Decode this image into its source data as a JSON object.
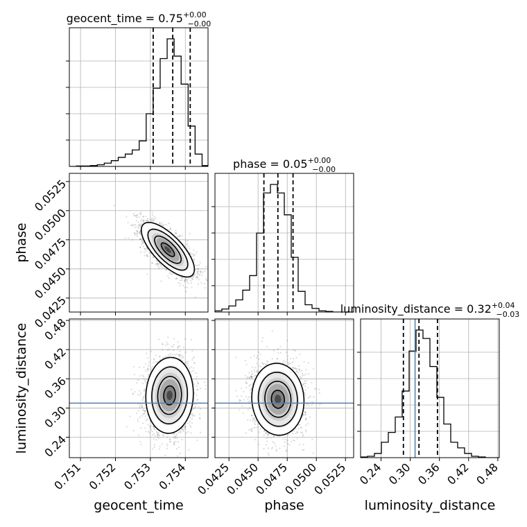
{
  "chart_data": {
    "type": "corner",
    "parameters": [
      "geocent_time",
      "phase",
      "luminosity_distance"
    ],
    "panel_titles": [
      {
        "prefix": "geocent_time = 0.75",
        "upper": "+0.00",
        "lower": "−0.00"
      },
      {
        "prefix": "phase = 0.05",
        "upper": "+0.00",
        "lower": "−0.00"
      },
      {
        "prefix": "luminosity_distance = 0.32",
        "upper": "+0.04",
        "lower": "−0.03"
      }
    ],
    "ranges": {
      "geocent_time": [
        0.75068,
        0.75465
      ],
      "phase": [
        0.0413,
        0.0532
      ],
      "luminosity_distance": [
        0.198,
        0.483
      ]
    },
    "ticks": {
      "geocent_time": {
        "values": [
          0.751,
          0.752,
          0.753,
          0.754
        ],
        "labels": [
          "0.751",
          "0.752",
          "0.753",
          "0.754"
        ]
      },
      "phase": {
        "values": [
          0.0425,
          0.045,
          0.0475,
          0.05,
          0.0525
        ],
        "labels": [
          "0.0425",
          "0.0450",
          "0.0475",
          "0.0500",
          "0.0525"
        ]
      },
      "luminosity_distance": {
        "values": [
          0.24,
          0.3,
          0.36,
          0.42,
          0.48
        ],
        "labels": [
          "0.24",
          "0.30",
          "0.36",
          "0.42",
          "0.48"
        ]
      }
    },
    "quantiles": {
      "geocent_time": [
        0.75308,
        0.75364,
        0.75414
      ],
      "phase": [
        0.0455,
        0.0467,
        0.048
      ],
      "luminosity_distance": [
        0.286,
        0.318,
        0.356
      ]
    },
    "truth": {
      "luminosity_distance": 0.31
    },
    "histograms": {
      "geocent_time": {
        "bin_width": 0.0002,
        "start": 0.75068,
        "counts": [
          0,
          1,
          1,
          2,
          4,
          8,
          14,
          22,
          30,
          40,
          62,
          128,
          190,
          262,
          310,
          268,
          200,
          98,
          30,
          2
        ]
      },
      "phase": {
        "bin_width": 0.000595,
        "start": 0.0413,
        "counts": [
          2,
          5,
          10,
          20,
          36,
          60,
          130,
          196,
          210,
          196,
          160,
          90,
          34,
          12,
          6,
          2,
          1,
          0,
          0,
          0
        ]
      },
      "luminosity_distance": {
        "bin_width": 0.01425,
        "start": 0.198,
        "counts": [
          1,
          2,
          6,
          22,
          36,
          58,
          95,
          152,
          182,
          170,
          130,
          86,
          48,
          22,
          14,
          6,
          2,
          1,
          0,
          0
        ]
      }
    },
    "density_2d": {
      "geocent_time_vs_phase": {
        "mean": [
          0.7535,
          0.04665
        ],
        "sd": [
          0.00038,
          0.00117
        ],
        "rho": -0.72
      },
      "geocent_time_vs_luminosity_distance": {
        "mean": [
          0.75355,
          0.326
        ],
        "sd": [
          0.00034,
          0.039
        ],
        "rho": 0.05
      },
      "phase_vs_luminosity_distance": {
        "mean": [
          0.0467,
          0.318
        ],
        "sd": [
          0.00112,
          0.037
        ],
        "rho": -0.05
      }
    },
    "contour_levels_sigma": [
      0.5,
      1.0,
      1.5,
      2.0
    ]
  }
}
